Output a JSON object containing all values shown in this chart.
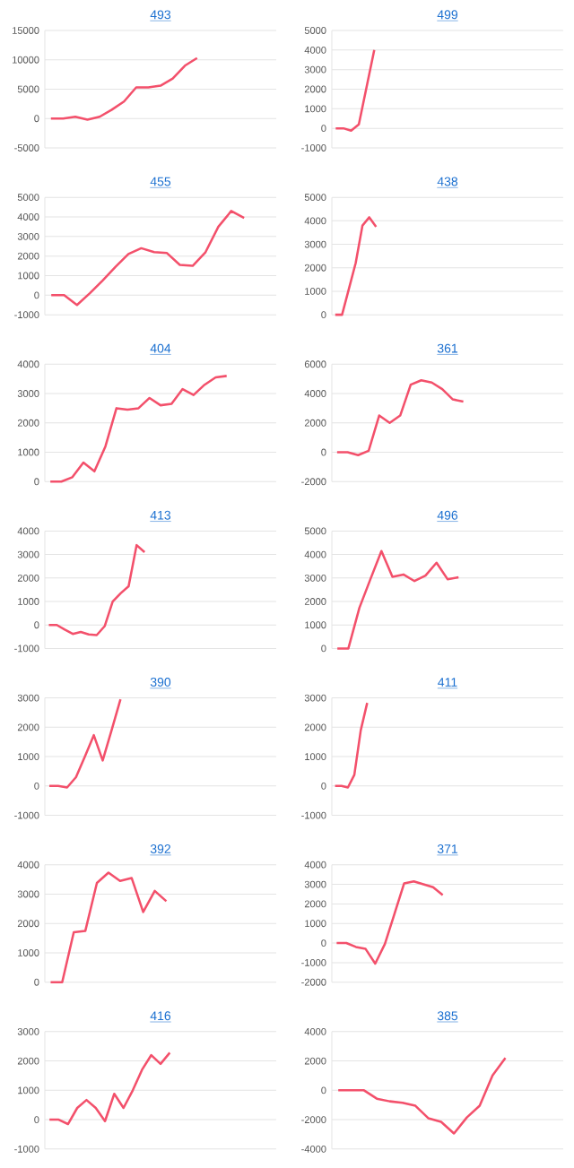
{
  "chart_data": [
    {
      "type": "line",
      "title": "493",
      "color": "#f3506b",
      "grid": "y",
      "tick_labels": "y",
      "marker": "none",
      "ylim": [
        -5000,
        15000
      ],
      "yticks": [
        -5000,
        0,
        5000,
        10000,
        15000
      ],
      "categories": [
        null,
        null,
        null,
        null,
        null,
        null,
        null,
        null,
        null,
        null,
        null,
        null,
        null,
        null,
        null,
        null,
        null,
        null,
        null
      ],
      "values": [
        0,
        0,
        300,
        -200,
        300,
        1500,
        2900,
        5300,
        5300,
        5600,
        6800,
        9000,
        10300,
        null,
        null,
        null,
        null,
        null,
        null
      ]
    },
    {
      "type": "line",
      "title": "499",
      "color": "#f3506b",
      "grid": "y",
      "tick_labels": "y",
      "marker": "none",
      "ylim": [
        -1000,
        5000
      ],
      "yticks": [
        -1000,
        0,
        1000,
        2000,
        3000,
        4000,
        5000
      ],
      "categories": [
        null,
        null,
        null,
        null,
        null,
        null,
        null,
        null,
        null,
        null,
        null,
        null,
        null,
        null,
        null,
        null,
        null,
        null,
        null,
        null,
        null,
        null,
        null,
        null,
        null,
        null,
        null,
        null,
        null,
        null
      ],
      "values": [
        0,
        0,
        -120,
        200,
        2100,
        4000,
        null,
        null,
        null,
        null,
        null,
        null,
        null,
        null,
        null,
        null,
        null,
        null,
        null,
        null,
        null,
        null,
        null,
        null,
        null,
        null,
        null,
        null,
        null,
        null
      ]
    },
    {
      "type": "line",
      "title": "455",
      "color": "#f3506b",
      "grid": "y",
      "tick_labels": "y",
      "marker": "none",
      "ylim": [
        -1000,
        5000
      ],
      "yticks": [
        -1000,
        0,
        1000,
        2000,
        3000,
        4000,
        5000
      ],
      "categories": [
        null,
        null,
        null,
        null,
        null,
        null,
        null,
        null,
        null,
        null,
        null,
        null,
        null,
        null,
        null,
        null,
        null,
        null
      ],
      "values": [
        0,
        0,
        -500,
        100,
        750,
        1450,
        2100,
        2400,
        2200,
        2150,
        1550,
        1500,
        2200,
        3500,
        4300,
        3950,
        null,
        null
      ]
    },
    {
      "type": "line",
      "title": "438",
      "color": "#f3506b",
      "grid": "y",
      "tick_labels": "y",
      "marker": "none",
      "ylim": [
        0,
        5000
      ],
      "yticks": [
        0,
        1000,
        2000,
        3000,
        4000,
        5000
      ],
      "categories": [
        null,
        null,
        null,
        null,
        null,
        null,
        null,
        null,
        null,
        null,
        null,
        null,
        null,
        null,
        null,
        null,
        null,
        null,
        null,
        null,
        null,
        null,
        null,
        null,
        null,
        null,
        null,
        null,
        null,
        null,
        null,
        null,
        null,
        null
      ],
      "values": [
        0,
        0,
        1100,
        2200,
        3800,
        4150,
        3750,
        null,
        null,
        null,
        null,
        null,
        null,
        null,
        null,
        null,
        null,
        null,
        null,
        null,
        null,
        null,
        null,
        null,
        null,
        null,
        null,
        null,
        null,
        null,
        null,
        null,
        null,
        null
      ]
    },
    {
      "type": "line",
      "title": "404",
      "color": "#f3506b",
      "grid": "y",
      "tick_labels": "y",
      "marker": "none",
      "ylim": [
        0,
        4000
      ],
      "yticks": [
        0,
        1000,
        2000,
        3000,
        4000
      ],
      "categories": [
        null,
        null,
        null,
        null,
        null,
        null,
        null,
        null,
        null,
        null,
        null,
        null,
        null,
        null,
        null,
        null,
        null,
        null,
        null,
        null,
        null
      ],
      "values": [
        0,
        0,
        150,
        650,
        350,
        1200,
        2500,
        2450,
        2500,
        2850,
        2600,
        2650,
        3150,
        2950,
        3300,
        3550,
        3600,
        null,
        null,
        null,
        null
      ]
    },
    {
      "type": "line",
      "title": "361",
      "color": "#f3506b",
      "grid": "y",
      "tick_labels": "y",
      "marker": "none",
      "ylim": [
        -2000,
        6000
      ],
      "yticks": [
        -2000,
        0,
        2000,
        4000,
        6000
      ],
      "categories": [
        null,
        null,
        null,
        null,
        null,
        null,
        null,
        null,
        null,
        null,
        null,
        null,
        null,
        null,
        null,
        null,
        null,
        null,
        null,
        null,
        null,
        null
      ],
      "values": [
        0,
        0,
        -200,
        100,
        2500,
        2000,
        2500,
        4600,
        4900,
        4750,
        4300,
        3600,
        3450,
        null,
        null,
        null,
        null,
        null,
        null,
        null,
        null,
        null
      ]
    },
    {
      "type": "line",
      "title": "413",
      "color": "#f3506b",
      "grid": "y",
      "tick_labels": "y",
      "marker": "none",
      "ylim": [
        -1000,
        4000
      ],
      "yticks": [
        -1000,
        0,
        1000,
        2000,
        3000,
        4000
      ],
      "categories": [
        null,
        null,
        null,
        null,
        null,
        null,
        null,
        null,
        null,
        null,
        null,
        null,
        null,
        null,
        null,
        null,
        null,
        null,
        null,
        null,
        null,
        null,
        null,
        null,
        null,
        null,
        null,
        null,
        null
      ],
      "values": [
        0,
        0,
        -200,
        -380,
        -300,
        -400,
        -430,
        -50,
        1000,
        1350,
        1650,
        3400,
        3100,
        null,
        null,
        null,
        null,
        null,
        null,
        null,
        null,
        null,
        null,
        null,
        null,
        null,
        null,
        null,
        null
      ]
    },
    {
      "type": "line",
      "title": "496",
      "color": "#f3506b",
      "grid": "y",
      "tick_labels": "y",
      "marker": "none",
      "ylim": [
        0,
        5000
      ],
      "yticks": [
        0,
        1000,
        2000,
        3000,
        4000,
        5000
      ],
      "categories": [
        null,
        null,
        null,
        null,
        null,
        null,
        null,
        null,
        null,
        null,
        null,
        null,
        null,
        null,
        null,
        null,
        null,
        null,
        null,
        null,
        null
      ],
      "values": [
        0,
        0,
        1730,
        2950,
        4150,
        3050,
        3150,
        2870,
        3100,
        3650,
        2950,
        3030,
        null,
        null,
        null,
        null,
        null,
        null,
        null,
        null,
        null
      ]
    },
    {
      "type": "line",
      "title": "390",
      "color": "#f3506b",
      "grid": "y",
      "tick_labels": "y",
      "marker": "none",
      "ylim": [
        -1000,
        3000
      ],
      "yticks": [
        -1000,
        0,
        1000,
        2000,
        3000
      ],
      "categories": [
        null,
        null,
        null,
        null,
        null,
        null,
        null,
        null,
        null,
        null,
        null,
        null,
        null,
        null,
        null,
        null,
        null,
        null,
        null,
        null,
        null,
        null,
        null,
        null,
        null,
        null
      ],
      "values": [
        0,
        0,
        -50,
        300,
        1000,
        1730,
        870,
        1900,
        2950,
        null,
        null,
        null,
        null,
        null,
        null,
        null,
        null,
        null,
        null,
        null,
        null,
        null,
        null,
        null,
        null,
        null
      ]
    },
    {
      "type": "line",
      "title": "411",
      "color": "#f3506b",
      "grid": "y",
      "tick_labels": "y",
      "marker": "none",
      "ylim": [
        -1000,
        3000
      ],
      "yticks": [
        -1000,
        0,
        1000,
        2000,
        3000
      ],
      "categories": [
        null,
        null,
        null,
        null,
        null,
        null,
        null,
        null,
        null,
        null,
        null,
        null,
        null,
        null,
        null,
        null,
        null,
        null,
        null,
        null,
        null,
        null,
        null,
        null,
        null,
        null,
        null,
        null,
        null,
        null,
        null,
        null,
        null,
        null,
        null,
        null
      ],
      "values": [
        0,
        0,
        -50,
        380,
        1900,
        2830,
        null,
        null,
        null,
        null,
        null,
        null,
        null,
        null,
        null,
        null,
        null,
        null,
        null,
        null,
        null,
        null,
        null,
        null,
        null,
        null,
        null,
        null,
        null,
        null,
        null,
        null,
        null,
        null,
        null,
        null
      ]
    },
    {
      "type": "line",
      "title": "392",
      "color": "#f3506b",
      "grid": "y",
      "tick_labels": "y",
      "marker": "none",
      "ylim": [
        0,
        4000
      ],
      "yticks": [
        0,
        1000,
        2000,
        3000,
        4000
      ],
      "categories": [
        null,
        null,
        null,
        null,
        null,
        null,
        null,
        null,
        null,
        null,
        null,
        null,
        null,
        null,
        null,
        null,
        null,
        null,
        null,
        null
      ],
      "values": [
        0,
        0,
        1700,
        1750,
        3380,
        3730,
        3450,
        3550,
        2390,
        3110,
        2760,
        null,
        null,
        null,
        null,
        null,
        null,
        null,
        null,
        null
      ]
    },
    {
      "type": "line",
      "title": "371",
      "color": "#f3506b",
      "grid": "y",
      "tick_labels": "y",
      "marker": "none",
      "ylim": [
        -2000,
        4000
      ],
      "yticks": [
        -2000,
        -1000,
        0,
        1000,
        2000,
        3000,
        4000
      ],
      "categories": [
        null,
        null,
        null,
        null,
        null,
        null,
        null,
        null,
        null,
        null,
        null,
        null,
        null,
        null,
        null,
        null,
        null,
        null,
        null,
        null,
        null,
        null,
        null,
        null
      ],
      "values": [
        0,
        0,
        -200,
        -300,
        -1050,
        -50,
        1500,
        3050,
        3150,
        3000,
        2850,
        2450,
        null,
        null,
        null,
        null,
        null,
        null,
        null,
        null,
        null,
        null,
        null,
        null
      ]
    },
    {
      "type": "line",
      "title": "416",
      "color": "#f3506b",
      "grid": "y",
      "tick_labels": "y",
      "marker": "none",
      "ylim": [
        -1000,
        3000
      ],
      "yticks": [
        -1000,
        0,
        1000,
        2000,
        3000
      ],
      "categories": [
        null,
        null,
        null,
        null,
        null,
        null,
        null,
        null,
        null,
        null,
        null,
        null,
        null,
        null,
        null,
        null,
        null,
        null,
        null,
        null,
        null,
        null,
        null,
        null,
        null
      ],
      "values": [
        0,
        0,
        -150,
        400,
        670,
        400,
        -50,
        880,
        400,
        1000,
        1700,
        2200,
        1900,
        2280,
        null,
        null,
        null,
        null,
        null,
        null,
        null,
        null,
        null,
        null,
        null
      ]
    },
    {
      "type": "line",
      "title": "385",
      "color": "#f3506b",
      "grid": "y",
      "tick_labels": "y",
      "marker": "none",
      "ylim": [
        -4000,
        4000
      ],
      "yticks": [
        -4000,
        -2000,
        0,
        2000,
        4000
      ],
      "categories": [
        null,
        null,
        null,
        null,
        null,
        null,
        null,
        null,
        null,
        null,
        null,
        null,
        null,
        null,
        null,
        null,
        null,
        null
      ],
      "values": [
        0,
        0,
        0,
        -570,
        -750,
        -850,
        -1050,
        -1900,
        -2150,
        -2940,
        -1850,
        -1050,
        1020,
        2200,
        null,
        null,
        null,
        null
      ]
    }
  ]
}
